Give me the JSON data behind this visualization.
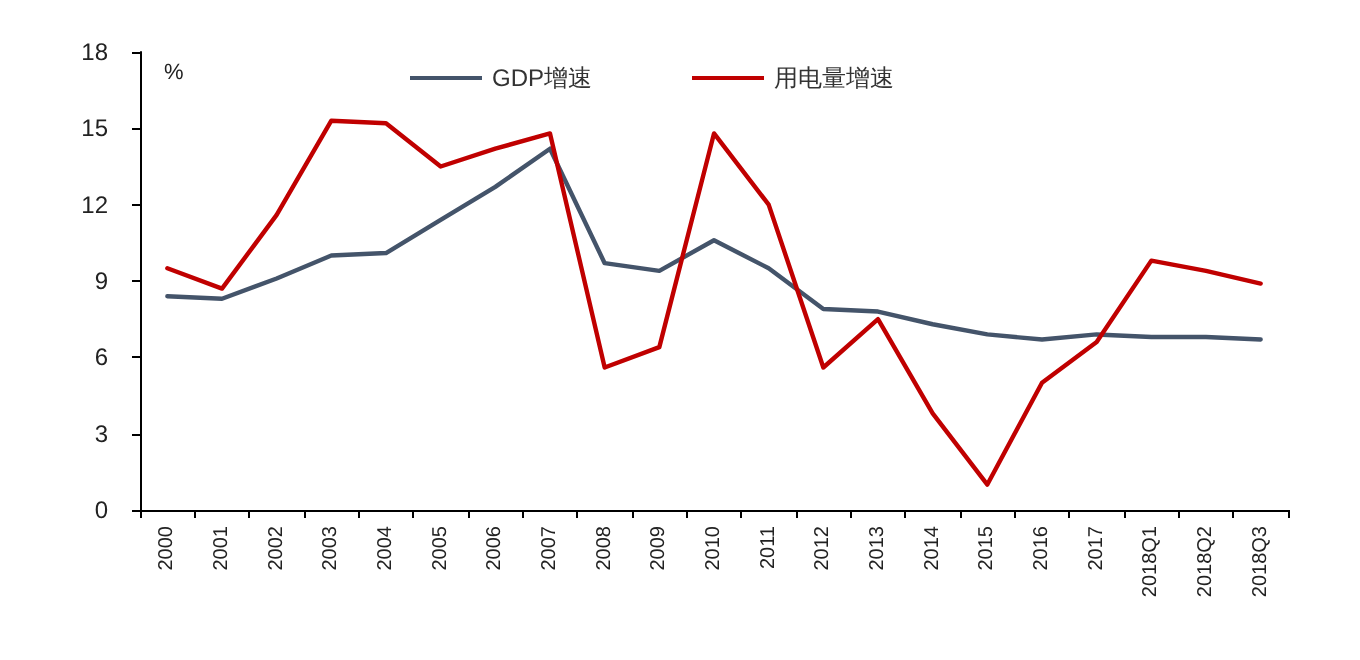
{
  "chart_data": {
    "type": "line",
    "ylabel": "%",
    "categories": [
      "2000",
      "2001",
      "2002",
      "2003",
      "2004",
      "2005",
      "2006",
      "2007",
      "2008",
      "2009",
      "2010",
      "2011",
      "2012",
      "2013",
      "2014",
      "2015",
      "2016",
      "2017",
      "2018Q1",
      "2018Q2",
      "2018Q3"
    ],
    "series": [
      {
        "name": "GDP增速",
        "color": "#44546a",
        "values": [
          8.4,
          8.3,
          9.1,
          10.0,
          10.1,
          11.4,
          12.7,
          14.2,
          9.7,
          9.4,
          10.6,
          9.5,
          7.9,
          7.8,
          7.3,
          6.9,
          6.7,
          6.9,
          6.8,
          6.8,
          6.7
        ]
      },
      {
        "name": "用电量增速",
        "color": "#c00000",
        "values": [
          9.5,
          8.7,
          11.6,
          15.3,
          15.2,
          13.5,
          14.2,
          14.8,
          5.6,
          6.4,
          14.8,
          12.0,
          5.6,
          7.5,
          3.8,
          1.0,
          5.0,
          6.6,
          9.8,
          9.4,
          8.9
        ]
      }
    ],
    "ylim": [
      0,
      18
    ],
    "yticks": [
      0,
      3,
      6,
      9,
      12,
      15,
      18
    ],
    "grid": false,
    "legend": "top",
    "marker": "none",
    "line_style": "solid"
  }
}
